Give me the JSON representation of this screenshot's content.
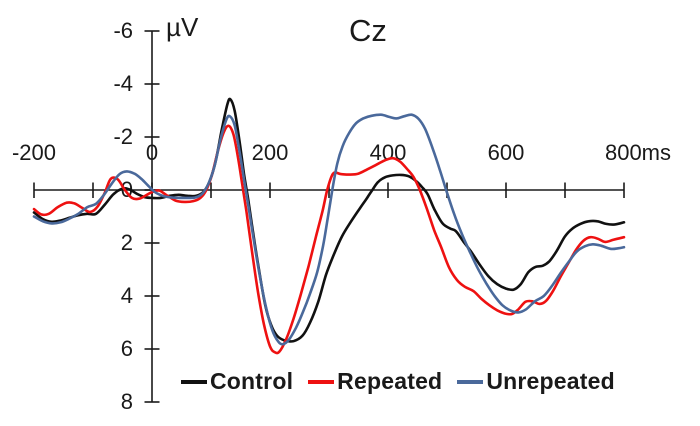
{
  "chart_data": {
    "type": "line",
    "title": "Cz",
    "ylabel": "µV",
    "x_unit": "ms",
    "grid": false,
    "legend_position": "bottom",
    "axis_color": "#1a1a1a",
    "text_color": "#1a1a1a",
    "x_axis": {
      "min": -200,
      "max": 800,
      "minor_tick_step": 100,
      "tick_values": [
        -200,
        0,
        200,
        400,
        600,
        800
      ],
      "tick_labels": [
        "-200",
        "0",
        "200",
        "400",
        "600",
        "800"
      ]
    },
    "y_axis": {
      "min": -6,
      "max": 8,
      "inverted": true,
      "unit": "µV",
      "tick_values": [
        -6,
        -4,
        -2,
        0,
        2,
        4,
        6,
        8
      ],
      "tick_labels": [
        "-6",
        "-4",
        "-2",
        "0",
        "2",
        "4",
        "6",
        "8"
      ]
    },
    "series": [
      {
        "name": "Control",
        "color": "#111111",
        "points": [
          [
            -200,
            0.85
          ],
          [
            -185,
            1.1
          ],
          [
            -170,
            1.2
          ],
          [
            -155,
            1.15
          ],
          [
            -140,
            1.05
          ],
          [
            -125,
            0.95
          ],
          [
            -110,
            0.9
          ],
          [
            -95,
            0.9
          ],
          [
            -80,
            0.55
          ],
          [
            -65,
            0.15
          ],
          [
            -50,
            -0.05
          ],
          [
            -38,
            -0.02
          ],
          [
            -25,
            0.15
          ],
          [
            -12,
            0.27
          ],
          [
            0,
            0.3
          ],
          [
            15,
            0.3
          ],
          [
            30,
            0.22
          ],
          [
            45,
            0.18
          ],
          [
            60,
            0.22
          ],
          [
            75,
            0.22
          ],
          [
            88,
            0.05
          ],
          [
            98,
            -0.35
          ],
          [
            108,
            -1.1
          ],
          [
            118,
            -2.25
          ],
          [
            128,
            -3.25
          ],
          [
            133,
            -3.42
          ],
          [
            140,
            -3.0
          ],
          [
            148,
            -1.9
          ],
          [
            156,
            -0.6
          ],
          [
            163,
            0.35
          ],
          [
            172,
            1.7
          ],
          [
            182,
            3.1
          ],
          [
            192,
            4.35
          ],
          [
            202,
            5.1
          ],
          [
            212,
            5.5
          ],
          [
            225,
            5.68
          ],
          [
            240,
            5.7
          ],
          [
            255,
            5.5
          ],
          [
            268,
            5.0
          ],
          [
            282,
            4.2
          ],
          [
            295,
            3.2
          ],
          [
            308,
            2.45
          ],
          [
            322,
            1.75
          ],
          [
            337,
            1.2
          ],
          [
            352,
            0.7
          ],
          [
            363,
            0.35
          ],
          [
            372,
            0.05
          ],
          [
            383,
            -0.3
          ],
          [
            395,
            -0.48
          ],
          [
            408,
            -0.55
          ],
          [
            422,
            -0.57
          ],
          [
            435,
            -0.52
          ],
          [
            448,
            -0.33
          ],
          [
            458,
            -0.1
          ],
          [
            467,
            0.15
          ],
          [
            478,
            0.7
          ],
          [
            492,
            1.25
          ],
          [
            505,
            1.45
          ],
          [
            515,
            1.55
          ],
          [
            528,
            1.95
          ],
          [
            540,
            2.3
          ],
          [
            555,
            2.8
          ],
          [
            570,
            3.25
          ],
          [
            585,
            3.55
          ],
          [
            600,
            3.72
          ],
          [
            613,
            3.76
          ],
          [
            625,
            3.55
          ],
          [
            638,
            3.1
          ],
          [
            650,
            2.9
          ],
          [
            662,
            2.86
          ],
          [
            673,
            2.7
          ],
          [
            686,
            2.3
          ],
          [
            700,
            1.75
          ],
          [
            713,
            1.45
          ],
          [
            726,
            1.28
          ],
          [
            740,
            1.18
          ],
          [
            755,
            1.18
          ],
          [
            770,
            1.28
          ],
          [
            785,
            1.3
          ],
          [
            800,
            1.22
          ]
        ]
      },
      {
        "name": "Repeated",
        "color": "#ee1111",
        "points": [
          [
            -200,
            0.72
          ],
          [
            -188,
            0.92
          ],
          [
            -175,
            0.9
          ],
          [
            -160,
            0.65
          ],
          [
            -145,
            0.48
          ],
          [
            -132,
            0.5
          ],
          [
            -118,
            0.68
          ],
          [
            -105,
            0.83
          ],
          [
            -92,
            0.62
          ],
          [
            -80,
            0.1
          ],
          [
            -70,
            -0.42
          ],
          [
            -58,
            -0.4
          ],
          [
            -46,
            0.0
          ],
          [
            -34,
            0.3
          ],
          [
            -22,
            0.33
          ],
          [
            -10,
            0.2
          ],
          [
            0,
            0.08
          ],
          [
            12,
            0.02
          ],
          [
            25,
            0.2
          ],
          [
            40,
            0.4
          ],
          [
            55,
            0.45
          ],
          [
            70,
            0.42
          ],
          [
            82,
            0.3
          ],
          [
            92,
            0.0
          ],
          [
            102,
            -0.6
          ],
          [
            112,
            -1.5
          ],
          [
            122,
            -2.2
          ],
          [
            130,
            -2.42
          ],
          [
            138,
            -2.1
          ],
          [
            146,
            -1.2
          ],
          [
            153,
            -0.2
          ],
          [
            160,
            0.8
          ],
          [
            170,
            2.4
          ],
          [
            180,
            3.9
          ],
          [
            190,
            5.1
          ],
          [
            200,
            5.9
          ],
          [
            208,
            6.12
          ],
          [
            216,
            6.1
          ],
          [
            228,
            5.6
          ],
          [
            240,
            4.85
          ],
          [
            252,
            3.95
          ],
          [
            265,
            2.9
          ],
          [
            278,
            1.75
          ],
          [
            289,
            0.8
          ],
          [
            297,
            0.0
          ],
          [
            307,
            -0.62
          ],
          [
            320,
            -0.6
          ],
          [
            335,
            -0.58
          ],
          [
            350,
            -0.62
          ],
          [
            365,
            -0.78
          ],
          [
            380,
            -0.95
          ],
          [
            395,
            -1.12
          ],
          [
            408,
            -1.2
          ],
          [
            420,
            -1.08
          ],
          [
            432,
            -0.8
          ],
          [
            443,
            -0.5
          ],
          [
            453,
            -0.05
          ],
          [
            465,
            0.65
          ],
          [
            478,
            1.5
          ],
          [
            490,
            2.15
          ],
          [
            503,
            2.9
          ],
          [
            517,
            3.4
          ],
          [
            530,
            3.65
          ],
          [
            545,
            3.82
          ],
          [
            558,
            4.1
          ],
          [
            572,
            4.35
          ],
          [
            586,
            4.55
          ],
          [
            598,
            4.66
          ],
          [
            610,
            4.68
          ],
          [
            621,
            4.5
          ],
          [
            633,
            4.22
          ],
          [
            645,
            4.2
          ],
          [
            657,
            4.3
          ],
          [
            668,
            4.18
          ],
          [
            680,
            3.8
          ],
          [
            693,
            3.25
          ],
          [
            706,
            2.75
          ],
          [
            719,
            2.25
          ],
          [
            731,
            1.92
          ],
          [
            743,
            1.78
          ],
          [
            756,
            1.84
          ],
          [
            768,
            1.96
          ],
          [
            782,
            1.88
          ],
          [
            800,
            1.78
          ]
        ]
      },
      {
        "name": "Unrepeated",
        "color": "#4a699b",
        "points": [
          [
            -200,
            1.0
          ],
          [
            -185,
            1.18
          ],
          [
            -170,
            1.26
          ],
          [
            -155,
            1.22
          ],
          [
            -140,
            1.08
          ],
          [
            -125,
            0.9
          ],
          [
            -110,
            0.65
          ],
          [
            -95,
            0.52
          ],
          [
            -82,
            0.2
          ],
          [
            -68,
            -0.25
          ],
          [
            -55,
            -0.6
          ],
          [
            -43,
            -0.7
          ],
          [
            -30,
            -0.62
          ],
          [
            -18,
            -0.42
          ],
          [
            -6,
            -0.15
          ],
          [
            5,
            0.08
          ],
          [
            18,
            0.22
          ],
          [
            32,
            0.28
          ],
          [
            46,
            0.3
          ],
          [
            60,
            0.3
          ],
          [
            74,
            0.28
          ],
          [
            86,
            0.12
          ],
          [
            96,
            -0.25
          ],
          [
            106,
            -0.9
          ],
          [
            116,
            -1.9
          ],
          [
            126,
            -2.65
          ],
          [
            132,
            -2.78
          ],
          [
            140,
            -2.45
          ],
          [
            148,
            -1.5
          ],
          [
            156,
            -0.4
          ],
          [
            164,
            0.7
          ],
          [
            174,
            2.1
          ],
          [
            184,
            3.4
          ],
          [
            194,
            4.5
          ],
          [
            204,
            5.3
          ],
          [
            214,
            5.72
          ],
          [
            222,
            5.82
          ],
          [
            232,
            5.65
          ],
          [
            244,
            5.2
          ],
          [
            256,
            4.6
          ],
          [
            268,
            3.9
          ],
          [
            280,
            3.1
          ],
          [
            290,
            2.1
          ],
          [
            298,
            1.05
          ],
          [
            306,
            -0.05
          ],
          [
            314,
            -1.0
          ],
          [
            323,
            -1.65
          ],
          [
            334,
            -2.15
          ],
          [
            346,
            -2.52
          ],
          [
            358,
            -2.7
          ],
          [
            372,
            -2.8
          ],
          [
            388,
            -2.84
          ],
          [
            402,
            -2.76
          ],
          [
            414,
            -2.7
          ],
          [
            427,
            -2.78
          ],
          [
            440,
            -2.84
          ],
          [
            452,
            -2.68
          ],
          [
            463,
            -2.3
          ],
          [
            476,
            -1.55
          ],
          [
            488,
            -0.75
          ],
          [
            500,
            0.1
          ],
          [
            512,
            0.9
          ],
          [
            525,
            1.65
          ],
          [
            538,
            2.3
          ],
          [
            552,
            2.95
          ],
          [
            566,
            3.5
          ],
          [
            580,
            3.98
          ],
          [
            594,
            4.35
          ],
          [
            608,
            4.55
          ],
          [
            621,
            4.62
          ],
          [
            634,
            4.5
          ],
          [
            649,
            4.2
          ],
          [
            664,
            4.0
          ],
          [
            678,
            3.62
          ],
          [
            692,
            3.15
          ],
          [
            706,
            2.72
          ],
          [
            720,
            2.32
          ],
          [
            734,
            2.12
          ],
          [
            747,
            2.05
          ],
          [
            761,
            2.1
          ],
          [
            777,
            2.22
          ],
          [
            790,
            2.2
          ],
          [
            800,
            2.16
          ]
        ]
      }
    ]
  }
}
